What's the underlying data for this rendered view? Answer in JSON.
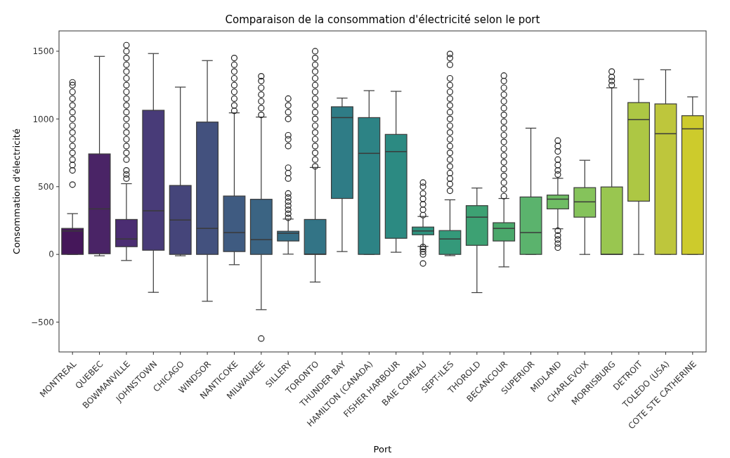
{
  "chart_data": {
    "type": "box",
    "title": "Comparaison de la consommation d'électricité selon le port",
    "xlabel": "Port",
    "ylabel": "Consommation d'électricité",
    "categories": [
      "MONTREAL",
      "QUEBEC",
      "BOWMANVILLE",
      "JOHNSTOWN",
      "CHICAGO",
      "WINDSOR",
      "NANTICOKE",
      "MILWAUKEE",
      "SILLERY",
      "TORONTO",
      "THUNDER BAY",
      "HAMILTON (CANADA)",
      "FISHER HARBOUR",
      "BAIE COMEAU",
      "SEPT-ILES",
      "THOROLD",
      "BECANCOUR",
      "SUPERIOR",
      "MIDLAND",
      "CHARLEVOIX",
      "MORRISBURG",
      "DETROIT",
      "TOLEDO (USA)",
      "COTE STE CATHERINE"
    ],
    "colors": [
      "#45175a",
      "#4a2466",
      "#4b2d72",
      "#483b78",
      "#45457a",
      "#43517e",
      "#3f5b81",
      "#3b6483",
      "#366d85",
      "#337486",
      "#2f7c86",
      "#2d8385",
      "#2c8a82",
      "#2e927e",
      "#34997a",
      "#3da173",
      "#4aa86b",
      "#5bb36d",
      "#6fbd64",
      "#85c35b",
      "#99c650",
      "#adc744",
      "#bec63c",
      "#cdcb2c"
    ],
    "boxes": [
      {
        "low": 0,
        "q1": 0,
        "median": 173,
        "q3": 192,
        "high": 301,
        "outliers": [
          515,
          620,
          660,
          700,
          750,
          800,
          850,
          900,
          950,
          1000,
          1050,
          1100,
          1150,
          1200,
          1250,
          1270
        ]
      },
      {
        "low": -10,
        "q1": 5,
        "median": 336,
        "q3": 742,
        "high": 1462
      },
      {
        "low": -45,
        "q1": 57,
        "median": 114,
        "q3": 258,
        "high": 522,
        "outliers": [
          560,
          590,
          620,
          700,
          750,
          800,
          850,
          900,
          950,
          1000,
          1050,
          1100,
          1150,
          1200,
          1250,
          1300,
          1350,
          1400,
          1450,
          1500,
          1545
        ]
      },
      {
        "low": -280,
        "q1": 31,
        "median": 322,
        "q3": 1064,
        "high": 1483
      },
      {
        "low": -10,
        "q1": 0,
        "median": 254,
        "q3": 509,
        "high": 1235
      },
      {
        "low": -346,
        "q1": 0,
        "median": 192,
        "q3": 977,
        "high": 1431
      },
      {
        "low": -76,
        "q1": 21,
        "median": 161,
        "q3": 431,
        "high": 1045,
        "outliers": [
          1060,
          1100,
          1150,
          1200,
          1250,
          1300,
          1350,
          1400,
          1450
        ]
      },
      {
        "low": -408,
        "q1": 0,
        "median": 109,
        "q3": 407,
        "high": 1014,
        "outliers": [
          -621,
          1030,
          1080,
          1130,
          1180,
          1230,
          1280,
          1315
        ]
      },
      {
        "low": 2,
        "q1": 99,
        "median": 156,
        "q3": 171,
        "high": 261,
        "outliers": [
          270,
          300,
          330,
          360,
          390,
          420,
          450,
          560,
          600,
          640,
          800,
          850,
          880,
          1000,
          1050,
          1100,
          1150
        ]
      },
      {
        "low": -204,
        "q1": 0,
        "median": 2,
        "q3": 258,
        "high": 642,
        "outliers": [
          650,
          700,
          750,
          800,
          850,
          900,
          950,
          1000,
          1050,
          1100,
          1150,
          1200,
          1250,
          1300,
          1350,
          1400,
          1450,
          1500
        ]
      },
      {
        "low": 21,
        "q1": 413,
        "median": 1010,
        "q3": 1090,
        "high": 1154
      },
      {
        "low": 0,
        "q1": 0,
        "median": 746,
        "q3": 1010,
        "high": 1209
      },
      {
        "low": 16,
        "q1": 119,
        "median": 759,
        "q3": 886,
        "high": 1204
      },
      {
        "low": 59,
        "q1": 145,
        "median": 173,
        "q3": 202,
        "high": 280,
        "outliers": [
          -67,
          0,
          20,
          40,
          55,
          290,
          330,
          370,
          410,
          450,
          500,
          530
        ]
      },
      {
        "low": -9,
        "q1": 0,
        "median": 114,
        "q3": 176,
        "high": 403,
        "outliers": [
          470,
          520,
          560,
          600,
          650,
          700,
          750,
          800,
          850,
          900,
          950,
          1000,
          1050,
          1100,
          1150,
          1200,
          1250,
          1300,
          1400,
          1450,
          1480
        ]
      },
      {
        "low": -282,
        "q1": 67,
        "median": 275,
        "q3": 360,
        "high": 490
      },
      {
        "low": -92,
        "q1": 99,
        "median": 192,
        "q3": 234,
        "high": 413,
        "outliers": [
          430,
          480,
          530,
          580,
          630,
          680,
          730,
          780,
          830,
          880,
          930,
          980,
          1030,
          1080,
          1130,
          1180,
          1230,
          1280,
          1320
        ]
      },
      {
        "low": 0,
        "q1": 0,
        "median": 161,
        "q3": 424,
        "high": 932
      },
      {
        "low": 189,
        "q1": 336,
        "median": 408,
        "q3": 438,
        "high": 562,
        "outliers": [
          50,
          80,
          110,
          140,
          175,
          590,
          620,
          660,
          700,
          760,
          800,
          840
        ]
      },
      {
        "low": 0,
        "q1": 275,
        "median": 388,
        "q3": 493,
        "high": 695
      },
      {
        "low": 0,
        "q1": 0,
        "median": 0,
        "q3": 498,
        "high": 1230,
        "outliers": [
          1250,
          1280,
          1310,
          1350
        ]
      },
      {
        "low": 0,
        "q1": 393,
        "median": 995,
        "q3": 1121,
        "high": 1292
      },
      {
        "low": 0,
        "q1": 0,
        "median": 891,
        "q3": 1111,
        "high": 1363
      },
      {
        "low": 0,
        "q1": 0,
        "median": 927,
        "q3": 1024,
        "high": 1163
      }
    ],
    "ylim": [
      -720,
      1650
    ],
    "yticks": [
      -500,
      0,
      500,
      1000,
      1500
    ],
    "grid": false
  }
}
